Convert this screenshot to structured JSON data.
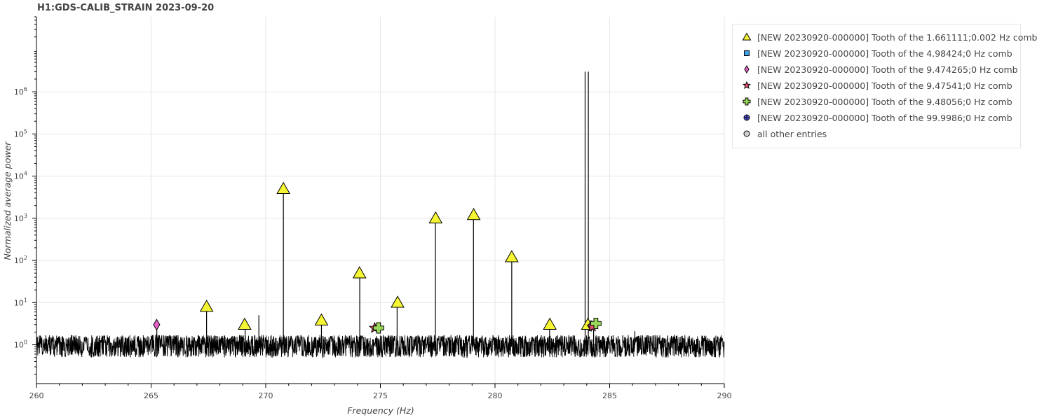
{
  "chart_data": {
    "type": "line",
    "title": "H1:GDS-CALIB_STRAIN 2023-09-20",
    "xlabel": "Frequency (Hz)",
    "ylabel": "Normalized average power",
    "x_scale": "linear",
    "y_scale": "log",
    "xlim": [
      260,
      290
    ],
    "ylim": [
      0.12,
      60000000
    ],
    "x_ticks": [
      260,
      265,
      270,
      275,
      280,
      285,
      290
    ],
    "x_tick_labels": [
      "260",
      "265",
      "270",
      "275",
      "280",
      "285",
      "290"
    ],
    "y_ticks": [
      1,
      10,
      100,
      1000,
      10000,
      100000,
      1000000
    ],
    "y_tick_labels": [
      {
        "base": "10",
        "exp": "0"
      },
      {
        "base": "10",
        "exp": "1"
      },
      {
        "base": "10",
        "exp": "2"
      },
      {
        "base": "10",
        "exp": "3"
      },
      {
        "base": "10",
        "exp": "4"
      },
      {
        "base": "10",
        "exp": "5"
      },
      {
        "base": "10",
        "exp": "6"
      }
    ],
    "grid": true,
    "legend_position": "right",
    "noise_floor": {
      "median": 1.0,
      "low": 0.5,
      "high": 1.7
    },
    "spectrum_peaks": [
      {
        "x": 265.25,
        "y": 3.0
      },
      {
        "x": 267.42,
        "y": 8.0
      },
      {
        "x": 269.1,
        "y": 3.0
      },
      {
        "x": 269.7,
        "y": 5.0
      },
      {
        "x": 270.77,
        "y": 5000
      },
      {
        "x": 272.43,
        "y": 3.8
      },
      {
        "x": 274.1,
        "y": 50
      },
      {
        "x": 275.73,
        "y": 10
      },
      {
        "x": 277.4,
        "y": 1000
      },
      {
        "x": 279.06,
        "y": 1200
      },
      {
        "x": 280.73,
        "y": 120
      },
      {
        "x": 282.38,
        "y": 3.0
      },
      {
        "x": 283.93,
        "y": 3000000
      },
      {
        "x": 284.07,
        "y": 3000000
      },
      {
        "x": 284.3,
        "y": 3.0
      },
      {
        "x": 286.1,
        "y": 2.1
      }
    ],
    "series": [
      {
        "name": "[NEW 20230920-000000] Tooth of the 1.661111;0.002 Hz comb",
        "marker": "triangle",
        "fill": "#f5f532",
        "points": [
          {
            "x": 267.42,
            "y": 8.0
          },
          {
            "x": 269.08,
            "y": 3.0
          },
          {
            "x": 270.77,
            "y": 5000
          },
          {
            "x": 272.43,
            "y": 3.8
          },
          {
            "x": 274.09,
            "y": 50
          },
          {
            "x": 275.75,
            "y": 10
          },
          {
            "x": 277.41,
            "y": 1000
          },
          {
            "x": 279.07,
            "y": 1200
          },
          {
            "x": 280.73,
            "y": 120
          },
          {
            "x": 282.39,
            "y": 3.0
          },
          {
            "x": 284.05,
            "y": 3.0
          }
        ]
      },
      {
        "name": "[NEW 20230920-000000] Tooth of the 4.98424;0 Hz comb",
        "marker": "square",
        "fill": "#3a9ee8",
        "points": []
      },
      {
        "name": "[NEW 20230920-000000] Tooth of the 9.474265;0 Hz comb",
        "marker": "diamond",
        "fill": "#e85fc8",
        "points": [
          {
            "x": 265.24,
            "y": 3.0
          },
          {
            "x": 284.19,
            "y": 2.8
          }
        ]
      },
      {
        "name": "[NEW 20230920-000000] Tooth of the 9.47541;0 Hz comb",
        "marker": "star",
        "fill": "#e8506e",
        "points": [
          {
            "x": 274.75,
            "y": 2.5
          },
          {
            "x": 284.24,
            "y": 2.7
          }
        ]
      },
      {
        "name": "[NEW 20230920-000000] Tooth of the 9.48056;0 Hz comb",
        "marker": "plus",
        "fill": "#98d858",
        "points": [
          {
            "x": 274.92,
            "y": 2.5
          },
          {
            "x": 284.4,
            "y": 3.2
          }
        ]
      },
      {
        "name": "[NEW 20230920-000000] Tooth of the 99.9986;0 Hz comb",
        "marker": "circle-cross",
        "fill": "#5a5ae8",
        "points": []
      },
      {
        "name": "all other entries",
        "marker": "circle",
        "fill": "#cfcfcf",
        "points": []
      }
    ]
  }
}
